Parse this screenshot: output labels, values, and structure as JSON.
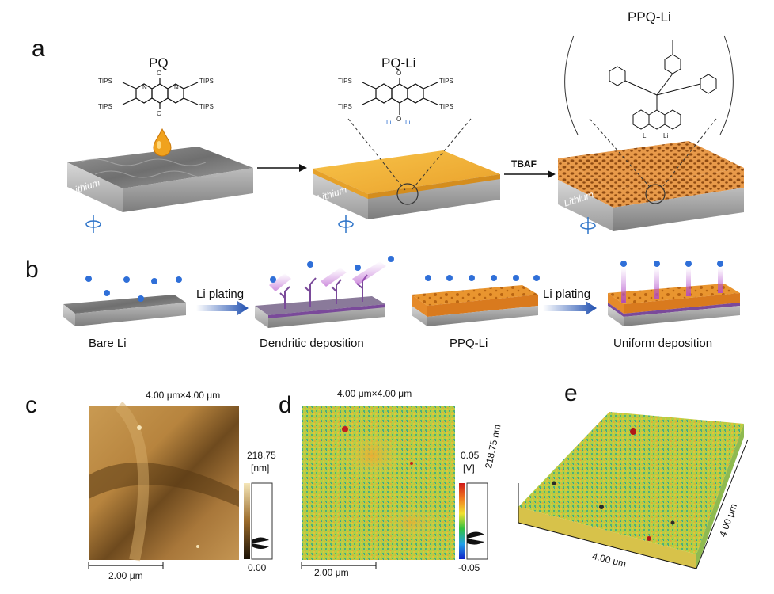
{
  "panels": {
    "a": "a",
    "b": "b",
    "c": "c",
    "d": "d",
    "e": "e"
  },
  "panel_a": {
    "titles": {
      "pq": "PQ",
      "pq_li": "PQ-Li",
      "ppq_li": "PPQ-Li"
    },
    "substrate_label": "Lithium",
    "arrow_label": "TBAF",
    "mol_labels": {
      "tips": "TIPS",
      "o": "O",
      "li": "Li",
      "n": "N"
    }
  },
  "panel_b": {
    "plating_label": "Li plating",
    "captions": {
      "bare": "Bare Li",
      "dendritic": "Dendritic deposition",
      "ppq": "PPQ-Li",
      "uniform": "Uniform deposition"
    }
  },
  "panel_c": {
    "size": "4.00 μm×4.00 μm",
    "scale_top": "218.75",
    "scale_unit": "[nm]",
    "scale_bottom": "0.00",
    "scalebar": "2.00 μm"
  },
  "panel_d": {
    "size": "4.00 μm×4.00 μm",
    "scale_top": "0.05",
    "scale_unit": "[V]",
    "scale_bottom": "-0.05",
    "scalebar": "2.00 μm"
  },
  "panel_e": {
    "z_axis": "218.75 nm",
    "x_axis": "4.00 μm",
    "y_axis": "4.00 μm"
  },
  "colors": {
    "gold": "#e9a93c",
    "lithium": "#8a8a8a",
    "ion_blue": "#2f6fd8",
    "dendrite": "#7a4a9a"
  }
}
